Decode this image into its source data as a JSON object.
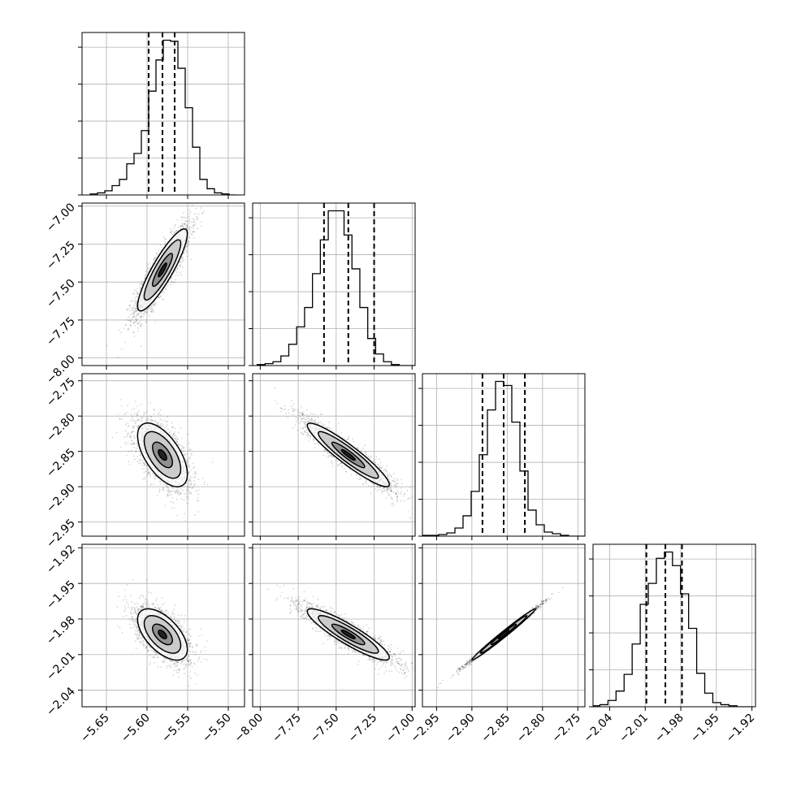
{
  "chart_data": {
    "type": "scatter",
    "plot_kind": "corner",
    "params": [
      {
        "ticks": [
          -5.65,
          -5.6,
          -5.55,
          -5.5
        ],
        "tick_labels": [
          "−5.65",
          "−5.60",
          "−5.55",
          "−5.50"
        ],
        "range": [
          -5.68,
          -5.48
        ]
      },
      {
        "ticks": [
          -8.0,
          -7.75,
          -7.5,
          -7.25,
          -7.0
        ],
        "tick_labels": [
          "−8.00",
          "−7.75",
          "−7.50",
          "−7.25",
          "−7.00"
        ],
        "range": [
          -8.05,
          -6.98
        ]
      },
      {
        "ticks": [
          -2.95,
          -2.9,
          -2.85,
          -2.8,
          -2.75
        ],
        "tick_labels": [
          "−2.95",
          "−2.90",
          "−2.85",
          "−2.80",
          "−2.75"
        ],
        "range": [
          -2.97,
          -2.74
        ]
      },
      {
        "ticks": [
          -2.04,
          -2.01,
          -1.98,
          -1.95,
          -1.92
        ],
        "tick_labels": [
          "−2.04",
          "−2.01",
          "−1.98",
          "−1.95",
          "−1.92"
        ],
        "range": [
          -2.054,
          -1.917
        ]
      }
    ],
    "grid": true,
    "quantiles": [
      [
        -5.598,
        -5.581,
        -5.566
      ],
      [
        -7.58,
        -7.42,
        -7.25
      ],
      [
        -2.885,
        -2.855,
        -2.825
      ],
      [
        -2.009,
        -1.993,
        -1.979
      ]
    ],
    "histograms": [
      {
        "edges_lo": -5.67,
        "edges_hi": -5.49,
        "counts": [
          1,
          2,
          4,
          9,
          15,
          30,
          40,
          62,
          100,
          130,
          149,
          148,
          122,
          84,
          46,
          15,
          6,
          2,
          1,
          0
        ]
      },
      {
        "edges_lo": -8.02,
        "edges_hi": -6.98,
        "counts": [
          1,
          2,
          4,
          10,
          22,
          40,
          60,
          95,
          130,
          160,
          160,
          135,
          100,
          60,
          28,
          12,
          4,
          1,
          0,
          0
        ]
      },
      {
        "edges_lo": -2.97,
        "edges_hi": -2.74,
        "counts": [
          1,
          1,
          2,
          4,
          10,
          25,
          55,
          100,
          155,
          190,
          185,
          140,
          80,
          32,
          14,
          5,
          3,
          1,
          0,
          0
        ]
      },
      {
        "edges_lo": -2.055,
        "edges_hi": -1.919,
        "counts": [
          1,
          2,
          6,
          15,
          31,
          60,
          98,
          118,
          142,
          148,
          135,
          108,
          75,
          32,
          13,
          4,
          2,
          1,
          0,
          0
        ]
      }
    ],
    "pairs": [
      {
        "x": 0,
        "y": 1,
        "center": [
          -5.581,
          -7.42
        ],
        "std": [
          0.017,
          0.15
        ],
        "corr": 0.88
      },
      {
        "x": 0,
        "y": 2,
        "center": [
          -5.581,
          -2.855
        ],
        "std": [
          0.017,
          0.025
        ],
        "corr": -0.6
      },
      {
        "x": 1,
        "y": 2,
        "center": [
          -7.42,
          -2.855
        ],
        "std": [
          0.15,
          0.025
        ],
        "corr": -0.93
      },
      {
        "x": 0,
        "y": 3,
        "center": [
          -5.581,
          -1.993
        ],
        "std": [
          0.017,
          0.012
        ],
        "corr": -0.58
      },
      {
        "x": 1,
        "y": 3,
        "center": [
          -7.42,
          -1.993
        ],
        "std": [
          0.15,
          0.012
        ],
        "corr": -0.9
      },
      {
        "x": 2,
        "y": 3,
        "center": [
          -2.855,
          -1.993
        ],
        "std": [
          0.025,
          0.012
        ],
        "corr": 0.995
      }
    ]
  }
}
